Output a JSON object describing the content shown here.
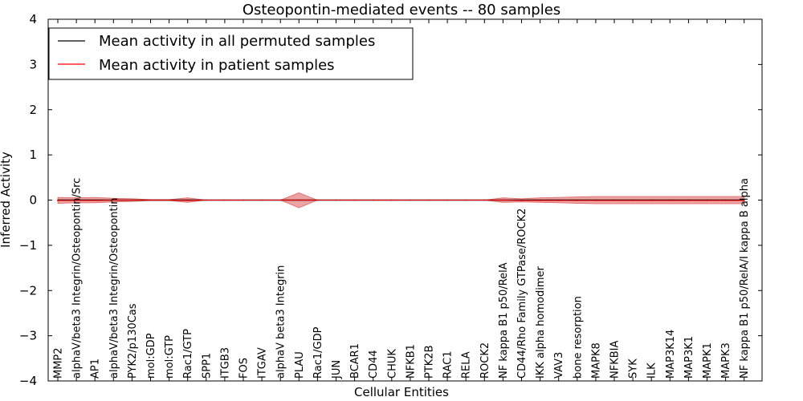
{
  "chart_data": {
    "type": "line",
    "title": "Osteopontin-mediated events -- 80 samples",
    "xlabel": "Cellular Entities",
    "ylabel": "Inferred Activity",
    "ylim": [
      -4,
      4
    ],
    "yticks": [
      -4,
      -3,
      -2,
      -1,
      0,
      1,
      2,
      3,
      4
    ],
    "ytick_labels": [
      "−4",
      "−3",
      "−2",
      "−1",
      "0",
      "1",
      "2",
      "3",
      "4"
    ],
    "legend_position": "top-left",
    "categories": [
      "MMP2",
      "alphaV/beta3 Integrin/Osteopontin/Src",
      "AP1",
      "alphaV/beta3 Integrin/Osteopontin",
      "PYK2/p130Cas",
      "mol:GDP",
      "mol:GTP",
      "Rac1/GTP",
      "SPP1",
      "ITGB3",
      "FOS",
      "ITGAV",
      "alphaV beta3 Integrin",
      "PLAU",
      "Rac1/GDP",
      "JUN",
      "BCAR1",
      "CD44",
      "CHUK",
      "NFKB1",
      "PTK2B",
      "RAC1",
      "RELA",
      "ROCK2",
      "NF kappa B1 p50/RelA",
      "CD44/Rho Family GTPase/ROCK2",
      "IKK alpha homodimer",
      "VAV3",
      "bone resorption",
      "MAPK8",
      "NFKBIA",
      "SYK",
      "ILK",
      "MAP3K14",
      "MAP3K1",
      "MAPK1",
      "MAPK3",
      "NF kappa B1 p50/RelA/I kappa B alpha"
    ],
    "series": [
      {
        "name": "Mean activity in all permuted samples",
        "color": "#000000",
        "values": [
          0,
          0,
          0,
          0,
          0,
          0,
          0,
          0,
          0,
          0,
          0,
          0,
          0,
          0,
          0,
          0,
          0,
          0,
          0,
          0,
          0,
          0,
          0,
          0,
          0,
          0,
          0,
          0,
          0,
          0,
          0,
          0,
          0,
          0,
          0,
          0,
          0,
          0
        ]
      },
      {
        "name": "Mean activity in patient samples",
        "color": "#ff0000",
        "band_color": "#e06666",
        "values": [
          -0.01,
          -0.01,
          -0.01,
          0.0,
          0.0,
          0.0,
          0.0,
          -0.01,
          0.0,
          0.0,
          0.0,
          0.0,
          0.0,
          0.0,
          0.0,
          0.0,
          0.0,
          0.0,
          0.0,
          0.0,
          0.0,
          0.0,
          0.0,
          0.0,
          0.0,
          -0.01,
          -0.01,
          -0.01,
          -0.01,
          -0.01,
          -0.01,
          -0.01,
          -0.01,
          -0.01,
          -0.01,
          -0.01,
          -0.01,
          -0.01
        ],
        "lower": [
          -0.07,
          -0.06,
          -0.06,
          -0.04,
          -0.03,
          -0.01,
          -0.01,
          -0.05,
          0.0,
          0.0,
          0.0,
          0.0,
          0.0,
          -0.17,
          0.0,
          0.0,
          0.0,
          0.0,
          0.0,
          0.0,
          0.0,
          0.0,
          0.0,
          0.0,
          -0.05,
          -0.04,
          -0.05,
          -0.06,
          -0.07,
          -0.08,
          -0.08,
          -0.08,
          -0.08,
          -0.08,
          -0.08,
          -0.08,
          -0.08,
          -0.08
        ],
        "upper": [
          0.06,
          0.05,
          0.06,
          0.04,
          0.03,
          0.01,
          0.01,
          0.05,
          0.0,
          0.0,
          0.0,
          0.0,
          0.0,
          0.16,
          0.0,
          0.0,
          0.0,
          0.0,
          0.0,
          0.0,
          0.0,
          0.0,
          0.0,
          0.0,
          0.05,
          0.03,
          0.05,
          0.06,
          0.07,
          0.08,
          0.08,
          0.08,
          0.08,
          0.08,
          0.08,
          0.08,
          0.08,
          0.08
        ]
      }
    ]
  }
}
